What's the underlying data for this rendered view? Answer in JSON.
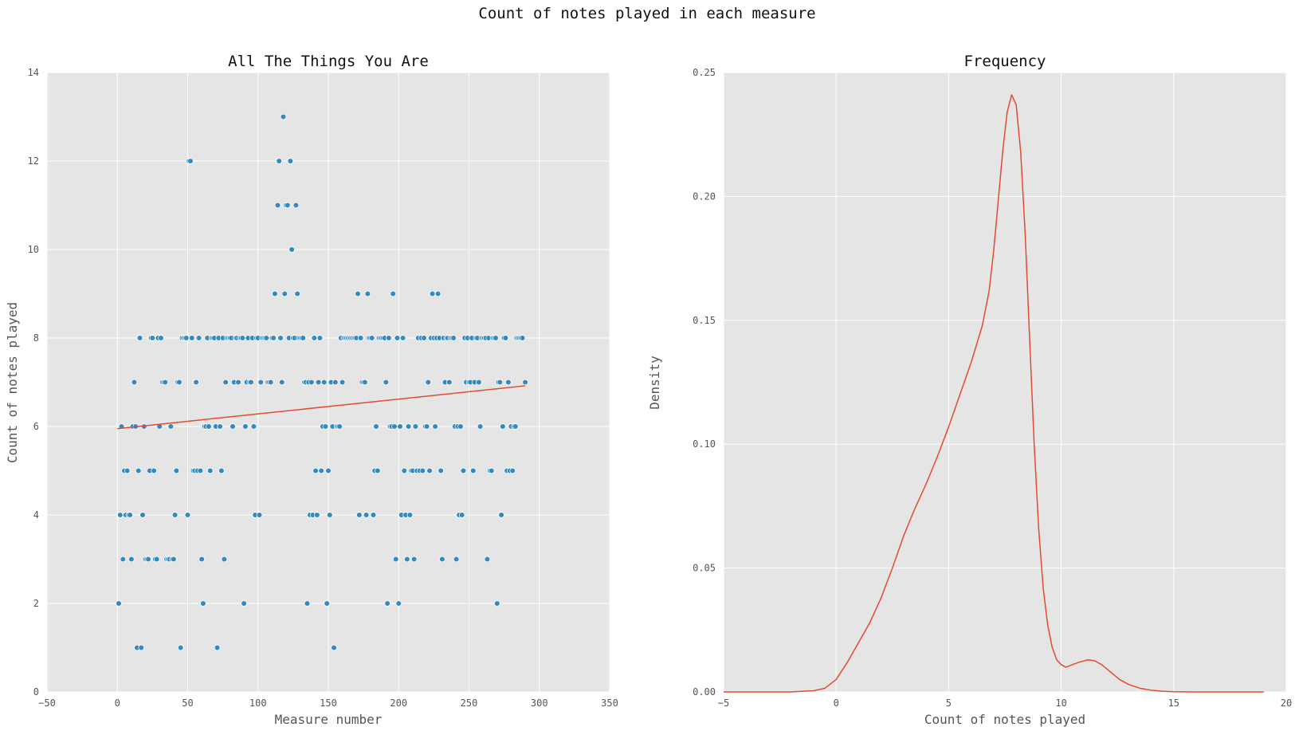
{
  "suptitle": "Count of notes played in each measure",
  "colors": {
    "panel_bg": "#e5e5e5",
    "grid": "#ffffff",
    "scatter_point": "#348abd",
    "line": "#e24a33"
  },
  "chart_data": [
    {
      "type": "scatter",
      "title": "All The Things You Are",
      "xlabel": "Measure number",
      "ylabel": "Count of notes played",
      "xlim": [
        -50,
        350
      ],
      "ylim": [
        0,
        14
      ],
      "xticks": [
        "−50",
        "0",
        "50",
        "100",
        "150",
        "200",
        "250",
        "300",
        "350"
      ],
      "yticks": [
        "0",
        "2",
        "4",
        "6",
        "8",
        "10",
        "12",
        "14"
      ],
      "grid": true,
      "fit_line": {
        "x": [
          0,
          290
        ],
        "y": [
          5.95,
          6.92
        ]
      },
      "points": [
        [
          1,
          2
        ],
        [
          2,
          4
        ],
        [
          3,
          6
        ],
        [
          4,
          3
        ],
        [
          5,
          5
        ],
        [
          6,
          4
        ],
        [
          7,
          5
        ],
        [
          8,
          4
        ],
        [
          9,
          4
        ],
        [
          10,
          3
        ],
        [
          11,
          6
        ],
        [
          12,
          7
        ],
        [
          13,
          6
        ],
        [
          14,
          1
        ],
        [
          15,
          5
        ],
        [
          16,
          8
        ],
        [
          17,
          1
        ],
        [
          18,
          4
        ],
        [
          19,
          6
        ],
        [
          20,
          3
        ],
        [
          21,
          3
        ],
        [
          22,
          3
        ],
        [
          23,
          5
        ],
        [
          24,
          8
        ],
        [
          25,
          8
        ],
        [
          26,
          5
        ],
        [
          27,
          3
        ],
        [
          28,
          3
        ],
        [
          29,
          8
        ],
        [
          30,
          6
        ],
        [
          31,
          8
        ],
        [
          32,
          7
        ],
        [
          33,
          7
        ],
        [
          34,
          7
        ],
        [
          35,
          3
        ],
        [
          36,
          3
        ],
        [
          37,
          3
        ],
        [
          38,
          6
        ],
        [
          39,
          3
        ],
        [
          40,
          3
        ],
        [
          41,
          4
        ],
        [
          42,
          5
        ],
        [
          43,
          7
        ],
        [
          44,
          7
        ],
        [
          45,
          1
        ],
        [
          46,
          8
        ],
        [
          47,
          8
        ],
        [
          48,
          8
        ],
        [
          49,
          8
        ],
        [
          50,
          4
        ],
        [
          51,
          12
        ],
        [
          52,
          12
        ],
        [
          53,
          8
        ],
        [
          54,
          5
        ],
        [
          55,
          5
        ],
        [
          56,
          7
        ],
        [
          57,
          5
        ],
        [
          58,
          8
        ],
        [
          59,
          5
        ],
        [
          60,
          3
        ],
        [
          61,
          2
        ],
        [
          62,
          6
        ],
        [
          63,
          6
        ],
        [
          64,
          8
        ],
        [
          65,
          6
        ],
        [
          66,
          5
        ],
        [
          67,
          8
        ],
        [
          68,
          8
        ],
        [
          69,
          8
        ],
        [
          70,
          6
        ],
        [
          71,
          1
        ],
        [
          72,
          8
        ],
        [
          73,
          6
        ],
        [
          74,
          5
        ],
        [
          75,
          8
        ],
        [
          76,
          3
        ],
        [
          77,
          7
        ],
        [
          78,
          8
        ],
        [
          79,
          8
        ],
        [
          80,
          8
        ],
        [
          81,
          8
        ],
        [
          82,
          6
        ],
        [
          83,
          7
        ],
        [
          84,
          8
        ],
        [
          85,
          8
        ],
        [
          86,
          7
        ],
        [
          87,
          8
        ],
        [
          88,
          8
        ],
        [
          89,
          8
        ],
        [
          90,
          2
        ],
        [
          91,
          6
        ],
        [
          92,
          7
        ],
        [
          93,
          8
        ],
        [
          94,
          7
        ],
        [
          95,
          7
        ],
        [
          96,
          8
        ],
        [
          97,
          6
        ],
        [
          98,
          4
        ],
        [
          99,
          8
        ],
        [
          100,
          8
        ],
        [
          101,
          4
        ],
        [
          102,
          7
        ],
        [
          103,
          8
        ],
        [
          104,
          8
        ],
        [
          105,
          8
        ],
        [
          106,
          8
        ],
        [
          107,
          7
        ],
        [
          108,
          7
        ],
        [
          109,
          7
        ],
        [
          110,
          8
        ],
        [
          111,
          8
        ],
        [
          112,
          9
        ],
        [
          114,
          11
        ],
        [
          115,
          12
        ],
        [
          116,
          8
        ],
        [
          117,
          7
        ],
        [
          118,
          13
        ],
        [
          119,
          9
        ],
        [
          120,
          11
        ],
        [
          121,
          11
        ],
        [
          122,
          8
        ],
        [
          123,
          12
        ],
        [
          124,
          10
        ],
        [
          125,
          8
        ],
        [
          126,
          8
        ],
        [
          127,
          11
        ],
        [
          128,
          9
        ],
        [
          129,
          8
        ],
        [
          130,
          8
        ],
        [
          131,
          8
        ],
        [
          132,
          8
        ],
        [
          133,
          7
        ],
        [
          134,
          7
        ],
        [
          135,
          2
        ],
        [
          136,
          7
        ],
        [
          137,
          4
        ],
        [
          138,
          7
        ],
        [
          139,
          4
        ],
        [
          140,
          8
        ],
        [
          141,
          5
        ],
        [
          142,
          4
        ],
        [
          143,
          7
        ],
        [
          144,
          8
        ],
        [
          145,
          5
        ],
        [
          146,
          6
        ],
        [
          147,
          7
        ],
        [
          148,
          6
        ],
        [
          149,
          2
        ],
        [
          150,
          5
        ],
        [
          151,
          4
        ],
        [
          152,
          7
        ],
        [
          153,
          6
        ],
        [
          154,
          1
        ],
        [
          155,
          7
        ],
        [
          156,
          6
        ],
        [
          157,
          6
        ],
        [
          158,
          6
        ],
        [
          159,
          8
        ],
        [
          160,
          7
        ],
        [
          161,
          8
        ],
        [
          162,
          8
        ],
        [
          163,
          8
        ],
        [
          164,
          8
        ],
        [
          165,
          8
        ],
        [
          166,
          8
        ],
        [
          167,
          8
        ],
        [
          168,
          8
        ],
        [
          169,
          8
        ],
        [
          170,
          8
        ],
        [
          171,
          9
        ],
        [
          172,
          4
        ],
        [
          173,
          8
        ],
        [
          174,
          7
        ],
        [
          175,
          7
        ],
        [
          176,
          7
        ],
        [
          177,
          4
        ],
        [
          178,
          9
        ],
        [
          179,
          8
        ],
        [
          180,
          8
        ],
        [
          181,
          8
        ],
        [
          182,
          4
        ],
        [
          183,
          5
        ],
        [
          184,
          6
        ],
        [
          185,
          5
        ],
        [
          186,
          8
        ],
        [
          187,
          8
        ],
        [
          188,
          8
        ],
        [
          189,
          8
        ],
        [
          190,
          8
        ],
        [
          191,
          7
        ],
        [
          192,
          2
        ],
        [
          193,
          8
        ],
        [
          194,
          6
        ],
        [
          195,
          6
        ],
        [
          196,
          9
        ],
        [
          197,
          6
        ],
        [
          198,
          3
        ],
        [
          199,
          8
        ],
        [
          200,
          2
        ],
        [
          201,
          6
        ],
        [
          202,
          4
        ],
        [
          203,
          8
        ],
        [
          204,
          5
        ],
        [
          205,
          4
        ],
        [
          206,
          3
        ],
        [
          207,
          6
        ],
        [
          208,
          4
        ],
        [
          209,
          5
        ],
        [
          210,
          5
        ],
        [
          211,
          3
        ],
        [
          212,
          6
        ],
        [
          213,
          5
        ],
        [
          214,
          8
        ],
        [
          215,
          5
        ],
        [
          216,
          8
        ],
        [
          217,
          5
        ],
        [
          218,
          8
        ],
        [
          219,
          6
        ],
        [
          220,
          6
        ],
        [
          221,
          7
        ],
        [
          222,
          5
        ],
        [
          223,
          8
        ],
        [
          224,
          9
        ],
        [
          225,
          8
        ],
        [
          226,
          6
        ],
        [
          227,
          8
        ],
        [
          228,
          9
        ],
        [
          229,
          8
        ],
        [
          230,
          5
        ],
        [
          231,
          3
        ],
        [
          232,
          8
        ],
        [
          233,
          7
        ],
        [
          234,
          8
        ],
        [
          235,
          8
        ],
        [
          236,
          7
        ],
        [
          237,
          8
        ],
        [
          238,
          8
        ],
        [
          239,
          8
        ],
        [
          240,
          6
        ],
        [
          241,
          3
        ],
        [
          242,
          6
        ],
        [
          243,
          4
        ],
        [
          244,
          6
        ],
        [
          245,
          4
        ],
        [
          246,
          5
        ],
        [
          247,
          8
        ],
        [
          248,
          7
        ],
        [
          249,
          8
        ],
        [
          250,
          7
        ],
        [
          251,
          7
        ],
        [
          252,
          8
        ],
        [
          253,
          5
        ],
        [
          254,
          7
        ],
        [
          255,
          8
        ],
        [
          256,
          8
        ],
        [
          257,
          7
        ],
        [
          258,
          6
        ],
        [
          259,
          8
        ],
        [
          260,
          8
        ],
        [
          261,
          8
        ],
        [
          262,
          8
        ],
        [
          263,
          3
        ],
        [
          264,
          8
        ],
        [
          265,
          5
        ],
        [
          266,
          5
        ],
        [
          267,
          8
        ],
        [
          268,
          8
        ],
        [
          269,
          8
        ],
        [
          270,
          2
        ],
        [
          271,
          7
        ],
        [
          272,
          7
        ],
        [
          273,
          4
        ],
        [
          274,
          6
        ],
        [
          275,
          8
        ],
        [
          276,
          8
        ],
        [
          277,
          5
        ],
        [
          278,
          7
        ],
        [
          279,
          5
        ],
        [
          280,
          6
        ],
        [
          281,
          5
        ],
        [
          282,
          6
        ],
        [
          283,
          6
        ],
        [
          284,
          8
        ],
        [
          285,
          8
        ],
        [
          286,
          8
        ],
        [
          287,
          8
        ],
        [
          288,
          8
        ],
        [
          290,
          7
        ]
      ]
    },
    {
      "type": "line",
      "title": "Frequency",
      "xlabel": "Count of notes played",
      "ylabel": "Density",
      "xlim": [
        -5,
        20
      ],
      "ylim": [
        0,
        0.25
      ],
      "xticks": [
        "−5",
        "0",
        "5",
        "10",
        "15",
        "20"
      ],
      "yticks": [
        "0.00",
        "0.05",
        "0.10",
        "0.15",
        "0.20",
        "0.25"
      ],
      "grid": true,
      "series": [
        {
          "x": [
            -5,
            -2,
            -1,
            -0.5,
            0,
            0.5,
            1,
            1.5,
            2,
            2.5,
            3,
            3.5,
            4,
            4.5,
            5,
            5.5,
            6,
            6.5,
            6.8,
            7,
            7.2,
            7.4,
            7.6,
            7.8,
            8,
            8.2,
            8.4,
            8.6,
            8.8,
            9,
            9.2,
            9.4,
            9.6,
            9.8,
            10,
            10.2,
            10.5,
            10.8,
            11.2,
            11.5,
            11.8,
            12.2,
            12.6,
            13,
            13.5,
            14,
            14.5,
            15,
            16,
            17,
            18,
            19
          ],
          "y": [
            0,
            0,
            0.0005,
            0.0015,
            0.005,
            0.012,
            0.02,
            0.028,
            0.038,
            0.05,
            0.063,
            0.074,
            0.084,
            0.095,
            0.107,
            0.12,
            0.133,
            0.148,
            0.162,
            0.178,
            0.198,
            0.218,
            0.234,
            0.241,
            0.237,
            0.218,
            0.185,
            0.142,
            0.1,
            0.066,
            0.042,
            0.027,
            0.018,
            0.013,
            0.011,
            0.01,
            0.011,
            0.012,
            0.013,
            0.0125,
            0.011,
            0.008,
            0.005,
            0.003,
            0.0015,
            0.0007,
            0.0003,
            0.0001,
            0,
            0,
            0,
            0
          ]
        }
      ]
    }
  ]
}
